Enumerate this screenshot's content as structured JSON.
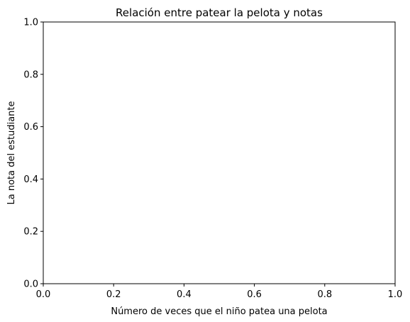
{
  "chart_data": {
    "type": "scatter",
    "title": "Relación entre patear la pelota y notas",
    "xlabel": "Número de veces que el niño patea una pelota",
    "ylabel": "La nota del estudiante",
    "xlim": [
      0.0,
      1.0
    ],
    "ylim": [
      0.0,
      1.0
    ],
    "xticks": [
      "0.0",
      "0.2",
      "0.4",
      "0.6",
      "0.8",
      "1.0"
    ],
    "yticks": [
      "0.0",
      "0.2",
      "0.4",
      "0.6",
      "0.8",
      "1.0"
    ],
    "grid": false,
    "series": [],
    "colors": {
      "axes": "#000000",
      "background": "#ffffff"
    }
  }
}
